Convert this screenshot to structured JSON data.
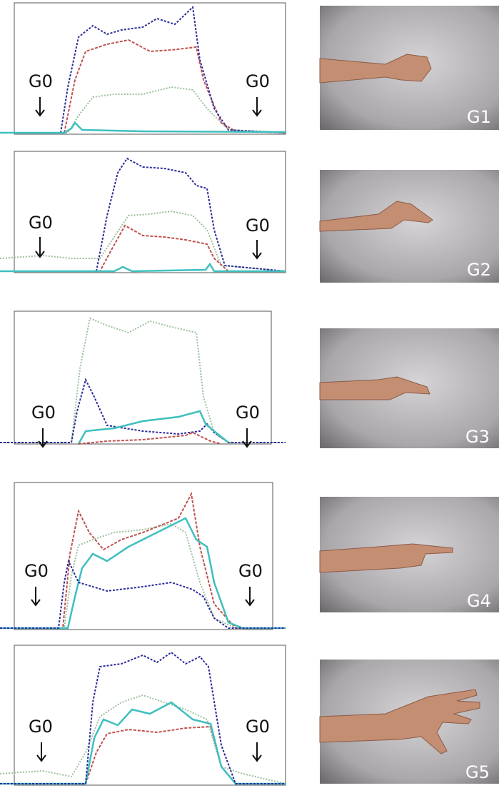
{
  "panels": [
    {
      "left_label": "G0",
      "right_label": "G0",
      "gesture": "G1"
    },
    {
      "left_label": "G0",
      "right_label": "G0",
      "gesture": "G2"
    },
    {
      "left_label": "G0",
      "right_label": "G0",
      "gesture": "G3"
    },
    {
      "left_label": "G0",
      "right_label": "G0",
      "gesture": "G4"
    },
    {
      "left_label": "G0",
      "right_label": "G0",
      "gesture": "G5"
    }
  ]
}
